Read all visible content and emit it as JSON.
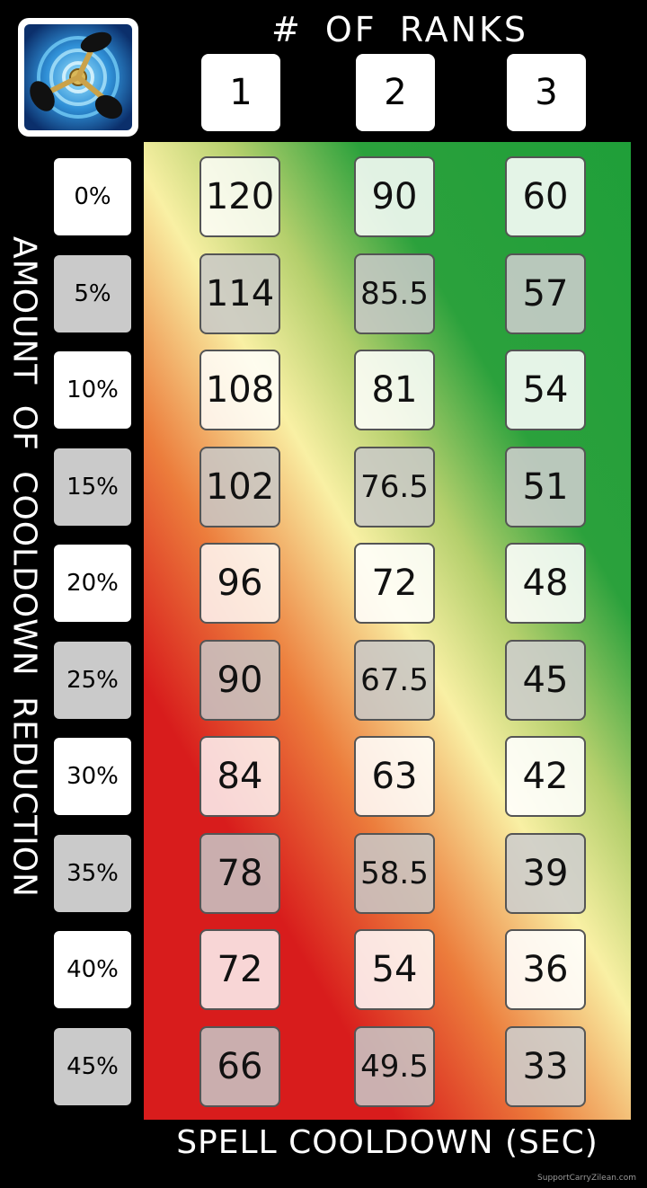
{
  "icon": "time-warp-spell-icon",
  "colors": {
    "background": "#000000",
    "red": "#d81c1c",
    "orange": "#ec7d3c",
    "yellow": "#f9f0a4",
    "green": "#1f9f39",
    "box_white": "#ffffff",
    "box_grey": "#cacaca"
  },
  "chart_data": {
    "type": "table",
    "column_title": "# OF RANKS",
    "row_title": "AMOUNT OF COOLDOWN REDUCTION",
    "value_title": "SPELL COOLDOWN (SEC)",
    "columns": [
      "1",
      "2",
      "3"
    ],
    "rows": [
      "0%",
      "5%",
      "10%",
      "15%",
      "20%",
      "25%",
      "30%",
      "35%",
      "40%",
      "45%"
    ],
    "values": [
      [
        "120",
        "90",
        "60"
      ],
      [
        "114",
        "85.5",
        "57"
      ],
      [
        "108",
        "81",
        "54"
      ],
      [
        "102",
        "76.5",
        "51"
      ],
      [
        "96",
        "72",
        "48"
      ],
      [
        "90",
        "67.5",
        "45"
      ],
      [
        "84",
        "63",
        "42"
      ],
      [
        "78",
        "58.5",
        "39"
      ],
      [
        "72",
        "54",
        "36"
      ],
      [
        "66",
        "49.5",
        "33"
      ]
    ],
    "background_gradient": [
      "red",
      "orange",
      "yellow",
      "green"
    ]
  },
  "watermark": "SupportCarryZilean.com"
}
